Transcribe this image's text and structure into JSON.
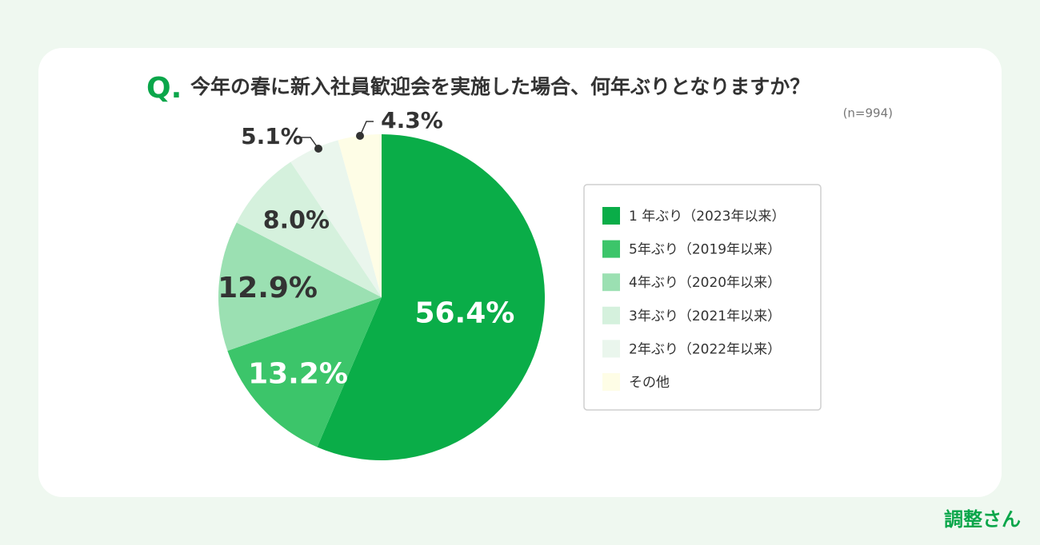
{
  "chart_data": {
    "type": "pie",
    "title_prefix": "Q.",
    "title": "今年の春に新入社員歓迎会を実施した場合、何年ぶりとなりますか？",
    "subtitle": "(n=994)",
    "categories": [
      "1 年ぶり（2023年以来）",
      "5年ぶり（2019年以来）",
      "4年ぶり（2020年以来）",
      "3年ぶり（2021年以来）",
      "2年ぶり（2022年以来）",
      "その他"
    ],
    "values": [
      56.4,
      13.2,
      12.9,
      8.0,
      5.1,
      4.3
    ],
    "value_labels": [
      "56.4%",
      "13.2%",
      "12.9%",
      "8.0%",
      "5.1%",
      "4.3%"
    ],
    "colors": [
      "#0aad48",
      "#3cc56a",
      "#9be0b2",
      "#d5f1dd",
      "#eaf6ed",
      "#fefde6"
    ],
    "logo": "調整さん"
  }
}
